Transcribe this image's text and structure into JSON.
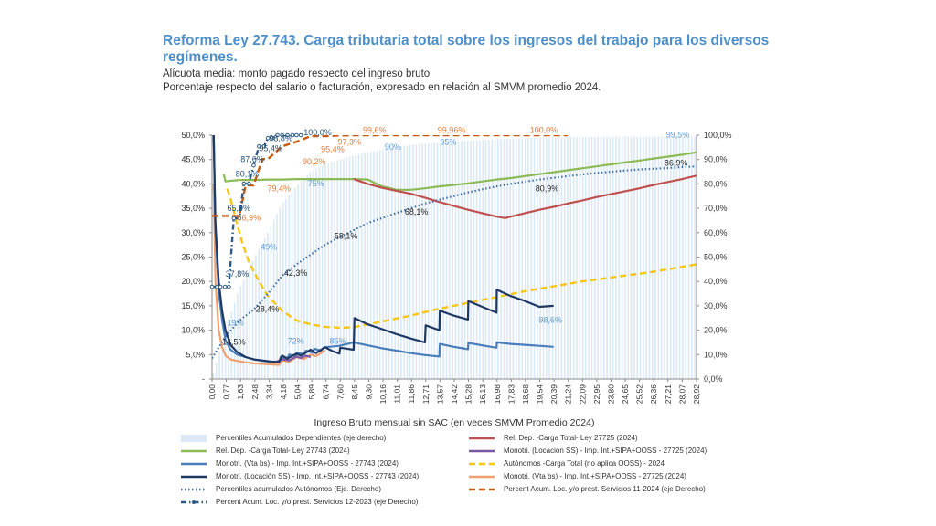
{
  "page": {
    "title": "Reforma Ley 27.743. Carga tributaria total sobre los ingresos del trabajo para los diversos regímenes.",
    "subtitle1": "Alícuota media: monto pagado respecto del ingreso bruto",
    "subtitle2": "Porcentaje respecto del salario o facturación, expresado en relación al SMVM promedio 2024."
  },
  "chart_data": {
    "type": "line",
    "xlabel": "Ingreso Bruto mensual sin SAC (en veces SMVM Promedio 2024)",
    "x_ticks": [
      "0,00",
      "0,77",
      "1,63",
      "2,48",
      "3,34",
      "4,18",
      "5,04",
      "5,89",
      "6,74",
      "7,60",
      "8,45",
      "9,30",
      "10,16",
      "11,01",
      "11,86",
      "12,71",
      "13,57",
      "14,42",
      "15,28",
      "16,13",
      "16,98",
      "17,83",
      "18,68",
      "19,54",
      "20,39",
      "21,24",
      "22,09",
      "22,95",
      "23,80",
      "24,65",
      "25,52",
      "26,36",
      "27,21",
      "28,07",
      "28,92"
    ],
    "xlim": [
      0,
      28.92
    ],
    "ylim_left": [
      0,
      50
    ],
    "ylim_right": [
      0,
      100
    ],
    "y_ticks_left": [
      "-",
      "5,0%",
      "10,0%",
      "15,0%",
      "20,0%",
      "25,0%",
      "30,0%",
      "35,0%",
      "40,0%",
      "45,0%",
      "50,0%"
    ],
    "y_ticks_right": [
      "0,0%",
      "10,0%",
      "20,0%",
      "30,0%",
      "40,0%",
      "50,0%",
      "60,0%",
      "70,0%",
      "80,0%",
      "90,0%",
      "100,0%"
    ],
    "grid": false,
    "legend_position": "bottom",
    "series": [
      {
        "key": "percentiles_dep",
        "name": "Percentiles Acumulados Dependientes (eje derecho)",
        "axis": "right",
        "style": "bars",
        "color": "#dbe8f5",
        "x": [
          0,
          0.77,
          1.63,
          2.48,
          3.34,
          4.18,
          5.04,
          5.89,
          6.74,
          7.6,
          8.45,
          9.3,
          10.16,
          11.01,
          11.86,
          12.71,
          13.57,
          14.42,
          15.28,
          16.13,
          16.98,
          17.83,
          18.68,
          19.54,
          20.39,
          21.24,
          22.09,
          22.95,
          23.8,
          24.65,
          25.52,
          26.36,
          27.21,
          28.07,
          28.92
        ],
        "y": [
          0,
          19,
          37,
          49,
          60,
          72,
          79,
          85,
          88,
          90,
          91.5,
          93,
          94,
          95,
          96,
          96.5,
          97,
          97.4,
          97.8,
          98,
          98.3,
          98.6,
          98.8,
          99,
          99.1,
          99.2,
          99.3,
          99.35,
          99.4,
          99.42,
          99.45,
          99.47,
          99.48,
          99.5,
          99.5
        ]
      },
      {
        "key": "rel_dep_27725",
        "name": "Rel. Dep. -Carga Total- Ley 27725 (2024)",
        "axis": "left",
        "style": "solid",
        "color": "#c0504d",
        "x": [
          8.45,
          9.3,
          10.16,
          11.01,
          11.86,
          12.71,
          13.57,
          14.42,
          15.28,
          16.13,
          16.98,
          17.5,
          17.83,
          18.68,
          19.54,
          20.39,
          21.24,
          22.09,
          22.95,
          23.8,
          24.65,
          25.52,
          26.36,
          27.21,
          28.07,
          28.92
        ],
        "y": [
          41,
          40,
          39.2,
          38.6,
          38,
          37.2,
          36.3,
          35.5,
          34.7,
          34,
          33.3,
          33,
          33.3,
          34,
          34.7,
          35.3,
          36,
          36.6,
          37.3,
          37.9,
          38.5,
          39.1,
          39.8,
          40.4,
          41,
          41.7
        ]
      },
      {
        "key": "rel_dep_27743",
        "name": "Rel. Dep. -Carga Total- Ley 27743 (2024)",
        "axis": "left",
        "style": "solid",
        "color": "#8cba56",
        "x": [
          0.7,
          0.8,
          1.0,
          1.63,
          2.48,
          3.34,
          4.18,
          5.04,
          5.89,
          6.74,
          7.6,
          8.45,
          9.3,
          10.16,
          11.01,
          11.86,
          12.71,
          13.57,
          14.42,
          15.28,
          16.13,
          16.98,
          17.83,
          18.68,
          19.54,
          20.39,
          21.24,
          22.09,
          22.95,
          23.8,
          24.65,
          25.52,
          26.36,
          27.21,
          28.07,
          28.92
        ],
        "y": [
          42,
          40.5,
          40.6,
          40.8,
          40.8,
          40.9,
          40.9,
          41,
          41,
          41,
          41,
          41,
          40.9,
          39.5,
          38.8,
          38.8,
          39.1,
          39.5,
          39.8,
          40.1,
          40.5,
          40.9,
          41.2,
          41.6,
          42,
          42.4,
          42.8,
          43.2,
          43.6,
          44,
          44.4,
          44.8,
          45.2,
          45.6,
          46,
          46.5
        ]
      },
      {
        "key": "monotri_loc_27725",
        "name": "Monotri. (Locación SS) - Imp. Int.+SIPA+OOSS - 27725 (2024)",
        "axis": "left",
        "style": "solid",
        "color": "#7b57a4",
        "x": [
          3.8,
          4.2,
          4.6,
          5.04,
          5.3,
          5.6,
          5.89
        ],
        "y": [
          3.5,
          4,
          3.8,
          4.6,
          4.3,
          4.8,
          4.5
        ]
      },
      {
        "key": "monotri_vta_27743",
        "name": "Monotri. (Vta bs) - Imp. Int.+SIPA+OOSS - 27743 (2024)",
        "axis": "left",
        "style": "solid",
        "color": "#4a7ebb",
        "x": [
          0.1,
          0.2,
          0.4,
          0.6,
          0.8,
          1.1,
          1.5,
          2.0,
          2.5,
          3.0,
          3.5,
          4.0,
          4.1,
          4.5,
          4.6,
          5.0,
          5.1,
          5.5,
          5.6,
          6.0,
          6.1,
          6.5,
          6.7,
          7.6,
          8.45,
          9.3,
          10.16,
          11.01,
          11.86,
          12.71,
          13.57,
          13.6,
          14.42,
          15.28,
          15.3,
          16.13,
          16.98,
          17.0,
          17.83,
          18.68,
          19.54,
          20.39
        ],
        "y": [
          50,
          30,
          18,
          12,
          8,
          6,
          5,
          4.5,
          4,
          3.7,
          3.5,
          3.4,
          4.5,
          4.2,
          5,
          4.7,
          5.4,
          5.1,
          5.8,
          5.4,
          6.2,
          5.8,
          6.5,
          6.8,
          7.5,
          6.9,
          6.3,
          5.8,
          5.3,
          4.9,
          4.6,
          7.2,
          6.6,
          6.1,
          7.4,
          6.9,
          6.4,
          7.5,
          7.2,
          7,
          6.8,
          6.6
        ]
      },
      {
        "key": "autonomos",
        "name": "Autónomos -Carga Total (no aplica OOSS) - 2024",
        "axis": "left",
        "style": "dashed",
        "color": "#f5c518",
        "x": [
          0.9,
          1.1,
          1.4,
          1.8,
          2.2,
          2.8,
          3.34,
          4.18,
          5.04,
          5.89,
          6.74,
          7.6,
          8.45,
          9.3,
          10.16,
          11.01,
          11.86,
          12.71,
          13.57,
          14.42,
          15.28,
          16.13,
          16.98,
          17.83,
          18.68,
          19.54,
          20.39,
          21.24,
          22.09,
          22.95,
          23.8,
          24.65,
          25.52,
          26.36,
          27.21,
          28.07,
          28.92
        ],
        "y": [
          39,
          37,
          33,
          28,
          24,
          20,
          17,
          14,
          12,
          11.2,
          10.7,
          10.5,
          10.6,
          11.2,
          11.8,
          12.4,
          13,
          13.7,
          14.4,
          15,
          15.6,
          16.2,
          16.8,
          17.4,
          18,
          18.5,
          19,
          19.5,
          20,
          20.4,
          20.8,
          21.2,
          21.6,
          22,
          22.5,
          23,
          23.5
        ]
      },
      {
        "key": "monotri_loc_27743",
        "name": "Monotri. (Locación SS) - Imp. Int.+SIPA+OOSS - 27743 (2024)",
        "axis": "left",
        "style": "solid",
        "color": "#1f3864",
        "x": [
          0.1,
          0.2,
          0.4,
          0.6,
          0.8,
          1.1,
          1.5,
          2.0,
          2.5,
          3.0,
          3.5,
          4.0,
          4.18,
          4.5,
          5.04,
          5.3,
          5.89,
          6.2,
          6.74,
          7.2,
          7.6,
          7.65,
          8.45,
          8.5,
          9.3,
          10.16,
          11.01,
          11.86,
          12.71,
          12.75,
          13.57,
          13.6,
          14.42,
          15.28,
          15.3,
          16.13,
          16.98,
          17.0,
          17.83,
          18.68,
          19.54,
          20.39
        ],
        "y": [
          50,
          32,
          20,
          14,
          10,
          7,
          5.5,
          4.5,
          4,
          3.8,
          3.6,
          3.5,
          4.8,
          4.2,
          5.2,
          4.8,
          6,
          5.3,
          6.5,
          5.7,
          5.2,
          6.4,
          6,
          12.5,
          11.2,
          10.2,
          9.2,
          8.3,
          7.5,
          11,
          10,
          14,
          13,
          12.2,
          16,
          14.8,
          13.6,
          18.3,
          17,
          16,
          14.8,
          15
        ]
      },
      {
        "key": "monotri_vta_27725",
        "name": "Monotri. (Vta bs) - Imp. Int.+SIPA+OOSS - 27725 (2024)",
        "axis": "left",
        "style": "solid",
        "color": "#f0a070",
        "x": [
          0.1,
          0.2,
          0.4,
          0.6,
          0.8,
          1.1,
          1.5,
          2.0,
          2.5,
          3.0,
          3.5,
          4.0,
          4.18,
          4.6,
          5.04,
          5.5,
          5.89,
          6.2,
          6.74
        ],
        "y": [
          40,
          20,
          10,
          6.5,
          4.8,
          4,
          3.7,
          3.4,
          3.2,
          3.1,
          3,
          2.9,
          3.8,
          3.5,
          4.5,
          4.1,
          5,
          4.7,
          5.8
        ]
      },
      {
        "key": "percent_autonomos",
        "name": "Percentiles acumulados Autónomos (Eje. Derecho)",
        "axis": "right",
        "style": "dotted",
        "color": "#3d6fa6",
        "x": [
          0,
          0.77,
          1.63,
          2.48,
          3.34,
          4.18,
          5.04,
          5.89,
          6.74,
          7.6,
          8.45,
          9.3,
          10.16,
          11.01,
          11.86,
          12.71,
          13.57,
          14.42,
          15.28,
          16.13,
          16.98,
          17.83,
          18.68,
          19.54,
          20.39,
          21.24,
          22.09,
          22.95,
          23.8,
          24.65,
          25.52,
          26.36,
          27.21,
          28.07,
          28.92
        ],
        "y": [
          8.5,
          17,
          24,
          28.4,
          35,
          42.3,
          47,
          51,
          55,
          58.1,
          61,
          64,
          66,
          68.1,
          70,
          72,
          73.5,
          75,
          76.5,
          77.8,
          79,
          80,
          80.9,
          81.8,
          82.5,
          83.2,
          83.9,
          84.5,
          85,
          85.5,
          85.9,
          86.2,
          86.5,
          86.9,
          87.2
        ]
      },
      {
        "key": "percent_11_2024",
        "name": "Percent Acum. Loc. y/o prest. Servicios 11-2024 (eje Derecho)",
        "axis": "right",
        "style": "dashed",
        "color": "#c55a11",
        "x": [
          0,
          0.5,
          0.77,
          1.2,
          1.63,
          2.0,
          2.48,
          3.0,
          3.34,
          4.18,
          5.04,
          5.89,
          6.74,
          7.6,
          8.45,
          9.3,
          10.16,
          11.01,
          11.86,
          12.71,
          13.57,
          14.42,
          15.28,
          16.13,
          16.98,
          17.83,
          18.68,
          19.54,
          20.39,
          21.24
        ],
        "y": [
          66.9,
          66.9,
          66.9,
          66.9,
          66.9,
          79.4,
          79.4,
          90.2,
          90.2,
          95.4,
          97.3,
          99.6,
          99.6,
          99.9,
          99.96,
          99.96,
          99.96,
          100,
          100,
          100,
          100,
          100,
          100,
          100,
          100,
          100,
          100,
          100,
          100,
          100
        ]
      },
      {
        "key": "percent_12_2023",
        "name": "Percent Acum. Loc. y/o prest. Servicios 12-2023 (eje Derecho)",
        "axis": "right",
        "style": "dash-dot",
        "color": "#2e5a87",
        "x": [
          0,
          0.3,
          0.5,
          0.77,
          1.0,
          1.3,
          1.63,
          1.9,
          2.2,
          2.48,
          2.8,
          3.1,
          3.34,
          3.6,
          3.9,
          4.18,
          4.5,
          4.8,
          5.04,
          5.3
        ],
        "y": [
          37.8,
          37.8,
          37.8,
          37.8,
          37.8,
          65.9,
          65.9,
          80.1,
          80.1,
          87.6,
          95.4,
          95.4,
          98.8,
          98.8,
          100,
          100,
          100,
          100,
          100,
          100
        ]
      }
    ],
    "annotations": [
      {
        "text": "100,0%",
        "x": 6.3,
        "axis": "right",
        "y": 100,
        "color": "#1f4e79"
      },
      {
        "text": "98,8%",
        "x": 4.1,
        "axis": "right",
        "y": 97.5,
        "color": "#1f4e79"
      },
      {
        "text": "95,4%",
        "x": 3.5,
        "axis": "right",
        "y": 93.5,
        "color": "#1f4e79"
      },
      {
        "text": "87,6%",
        "x": 2.4,
        "axis": "right",
        "y": 89,
        "color": "#1f4e79"
      },
      {
        "text": "80,1%",
        "x": 2.1,
        "axis": "right",
        "y": 83,
        "color": "#1f4e79"
      },
      {
        "text": "65,9%",
        "x": 1.6,
        "axis": "right",
        "y": 69,
        "color": "#1f4e79"
      },
      {
        "text": "37,8%",
        "x": 1.5,
        "axis": "right",
        "y": 42,
        "color": "#1f4e79"
      },
      {
        "text": "99,6%",
        "x": 9.7,
        "axis": "right",
        "y": 101,
        "color": "#e07b39"
      },
      {
        "text": "99,96%",
        "x": 14.3,
        "axis": "right",
        "y": 101,
        "color": "#e07b39"
      },
      {
        "text": "100,0%",
        "x": 19.8,
        "axis": "right",
        "y": 101,
        "color": "#e07b39"
      },
      {
        "text": "97,3%",
        "x": 8.2,
        "axis": "right",
        "y": 96,
        "color": "#e07b39"
      },
      {
        "text": "95,4%",
        "x": 7.2,
        "axis": "right",
        "y": 93,
        "color": "#e07b39"
      },
      {
        "text": "90,2%",
        "x": 6.1,
        "axis": "right",
        "y": 88,
        "color": "#e07b39"
      },
      {
        "text": "79,4%",
        "x": 4.0,
        "axis": "right",
        "y": 77,
        "color": "#e07b39"
      },
      {
        "text": "66,9%",
        "x": 2.2,
        "axis": "right",
        "y": 65,
        "color": "#e07b39"
      },
      {
        "text": "90%",
        "x": 10.8,
        "axis": "right",
        "y": 94,
        "color": "#5b9bd5"
      },
      {
        "text": "95%",
        "x": 14.1,
        "axis": "right",
        "y": 96,
        "color": "#5b9bd5"
      },
      {
        "text": "75%",
        "x": 6.2,
        "axis": "right",
        "y": 79,
        "color": "#5b9bd5"
      },
      {
        "text": "49%",
        "x": 3.4,
        "axis": "right",
        "y": 53,
        "color": "#5b9bd5"
      },
      {
        "text": "19%",
        "x": 1.4,
        "axis": "right",
        "y": 22,
        "color": "#5b9bd5"
      },
      {
        "text": "72%",
        "x": 5.0,
        "axis": "right",
        "y": 14.5,
        "color": "#5b9bd5"
      },
      {
        "text": "85%",
        "x": 7.5,
        "axis": "right",
        "y": 14.5,
        "color": "#5b9bd5"
      },
      {
        "text": "98,6%",
        "x": 20.2,
        "axis": "right",
        "y": 23,
        "color": "#5b9bd5"
      },
      {
        "text": "99,5%",
        "x": 27.8,
        "axis": "right",
        "y": 99,
        "color": "#5b9bd5"
      },
      {
        "text": "86,9%",
        "x": 27.7,
        "axis": "right",
        "y": 87.5,
        "color": "#222222"
      },
      {
        "text": "80,9%",
        "x": 20.0,
        "axis": "right",
        "y": 77,
        "color": "#222222"
      },
      {
        "text": "68,1%",
        "x": 12.2,
        "axis": "right",
        "y": 67.5,
        "color": "#222222"
      },
      {
        "text": "58,1%",
        "x": 8.0,
        "axis": "right",
        "y": 57.5,
        "color": "#222222"
      },
      {
        "text": "42,3%",
        "x": 5.0,
        "axis": "right",
        "y": 42.3,
        "color": "#222222"
      },
      {
        "text": "28,4%",
        "x": 3.3,
        "axis": "right",
        "y": 27.5,
        "color": "#222222"
      },
      {
        "text": "14,5%",
        "x": 1.3,
        "axis": "right",
        "y": 14,
        "color": "#222222"
      }
    ]
  }
}
